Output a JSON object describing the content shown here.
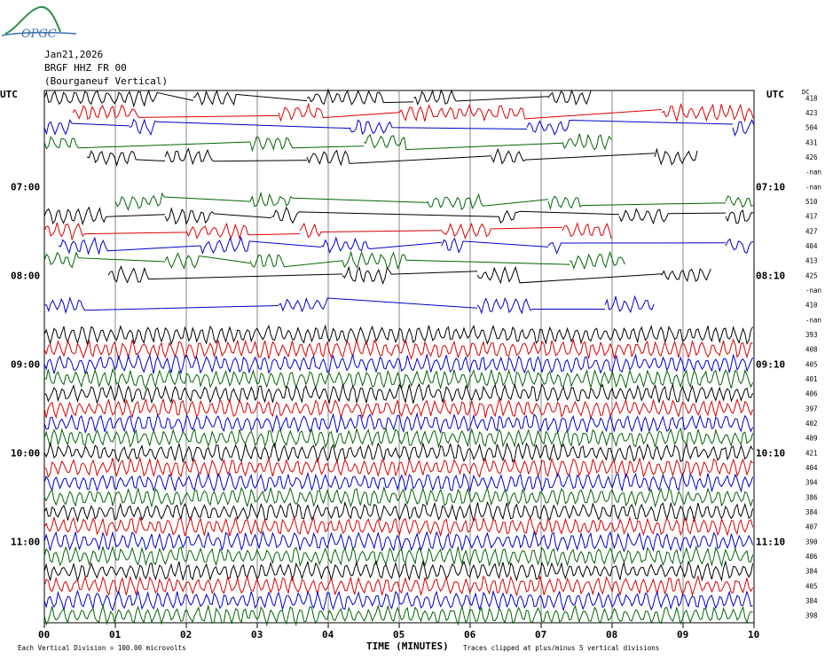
{
  "logo": {
    "text": "OPGC"
  },
  "header": {
    "date": "Jan21,2026",
    "station": "BRGF HHZ FR 00",
    "location": "(Bourganeuf Vertical)"
  },
  "axis": {
    "left_unit": "UTC",
    "right_unit": "UTC",
    "dc_label": "DC",
    "xlabel": "TIME (MINUTES)",
    "xticks": [
      "00",
      "01",
      "02",
      "03",
      "04",
      "05",
      "06",
      "07",
      "08",
      "09",
      "10"
    ]
  },
  "footer": {
    "division": "Each Vertical Division = 100.00 microvolts",
    "clip": "Traces clipped at plus/minus 5 vertical divisions"
  },
  "chart_data": {
    "type": "line",
    "xlim": [
      0,
      10
    ],
    "left_hour_labels": [
      {
        "row": 6,
        "label": "07:00"
      },
      {
        "row": 12,
        "label": "08:00"
      },
      {
        "row": 18,
        "label": "09:00"
      },
      {
        "row": 24,
        "label": "10:00"
      },
      {
        "row": 30,
        "label": "11:00"
      }
    ],
    "right_hour_labels": [
      {
        "row": 6,
        "label": "07:10"
      },
      {
        "row": 12,
        "label": "08:10"
      },
      {
        "row": 18,
        "label": "09:10"
      },
      {
        "row": 24,
        "label": "10:10"
      },
      {
        "row": 30,
        "label": "11:10"
      }
    ],
    "trace_colors": [
      "#000000",
      "#dd0000",
      "#0000cc",
      "#006600"
    ],
    "dc_offsets": [
      "418",
      "423",
      "504",
      "431",
      "426",
      "-nan",
      "-nan",
      "510",
      "417",
      "427",
      "404",
      "413",
      "425",
      "-nan",
      "410",
      "-nan",
      "393",
      "408",
      "405",
      "401",
      "406",
      "397",
      "402",
      "409",
      "421",
      "404",
      "394",
      "386",
      "384",
      "407",
      "390",
      "406",
      "384",
      "405",
      "384",
      "398"
    ],
    "traces": [
      {
        "row": 0,
        "segments": [
          [
            0,
            1.6
          ],
          [
            2.1,
            2.7
          ],
          [
            3.7,
            4.8
          ],
          [
            5.2,
            5.8
          ],
          [
            7.1,
            7.7
          ]
        ],
        "gap_flat": true
      },
      {
        "row": 1,
        "segments": [
          [
            0.4,
            1.35
          ],
          [
            3.3,
            3.95
          ],
          [
            5.0,
            6.8
          ],
          [
            8.7,
            10
          ]
        ]
      },
      {
        "row": 2,
        "segments": [
          [
            0,
            0.4
          ],
          [
            1.2,
            1.6
          ],
          [
            4.3,
            4.9
          ],
          [
            6.8,
            7.4
          ],
          [
            9.7,
            10
          ]
        ]
      },
      {
        "row": 3,
        "segments": [
          [
            0,
            0.5
          ],
          [
            2.9,
            3.5
          ],
          [
            4.5,
            5.1
          ],
          [
            7.3,
            8.0
          ]
        ]
      },
      {
        "row": 4,
        "segments": [
          [
            0.6,
            1.3
          ],
          [
            1.7,
            2.4
          ],
          [
            3.7,
            4.3
          ],
          [
            6.3,
            6.8
          ],
          [
            8.6,
            9.2
          ]
        ]
      },
      {
        "row": 7,
        "segments": [
          [
            1.0,
            1.7
          ],
          [
            2.9,
            3.5
          ],
          [
            5.4,
            6.2
          ],
          [
            7.1,
            7.6
          ],
          [
            9.6,
            10
          ]
        ]
      },
      {
        "row": 8,
        "segments": [
          [
            0,
            0.9
          ],
          [
            1.7,
            2.4
          ],
          [
            3.2,
            3.6
          ],
          [
            6.4,
            6.7
          ],
          [
            8.1,
            8.8
          ],
          [
            9.6,
            10
          ]
        ]
      },
      {
        "row": 9,
        "segments": [
          [
            0,
            0.6
          ],
          [
            2.0,
            2.9
          ],
          [
            3.6,
            3.9
          ],
          [
            5.6,
            6.3
          ],
          [
            7.3,
            8.0
          ]
        ]
      },
      {
        "row": 10,
        "segments": [
          [
            0.2,
            0.9
          ],
          [
            2.2,
            2.9
          ],
          [
            3.9,
            4.6
          ],
          [
            5.6,
            5.9
          ],
          [
            7.1,
            7.3
          ],
          [
            9.6,
            10
          ]
        ]
      },
      {
        "row": 11,
        "segments": [
          [
            0,
            0.5
          ],
          [
            1.7,
            2.2
          ],
          [
            2.9,
            3.4
          ],
          [
            4.2,
            5.1
          ],
          [
            7.4,
            8.2
          ]
        ]
      },
      {
        "row": 12,
        "segments": [
          [
            0.9,
            1.5
          ],
          [
            4.2,
            4.9
          ],
          [
            6.1,
            6.7
          ],
          [
            8.7,
            9.4
          ]
        ]
      },
      {
        "row": 14,
        "segments": [
          [
            0,
            0.6
          ],
          [
            3.3,
            4.0
          ],
          [
            6.1,
            6.9
          ],
          [
            7.9,
            8.6
          ]
        ]
      },
      {
        "row": 16,
        "full": true
      },
      {
        "row": 17,
        "full": true
      },
      {
        "row": 18,
        "full": true
      },
      {
        "row": 19,
        "full": true
      },
      {
        "row": 20,
        "full": true
      },
      {
        "row": 21,
        "full": true
      },
      {
        "row": 22,
        "full": true
      },
      {
        "row": 23,
        "full": true
      },
      {
        "row": 24,
        "full": true
      },
      {
        "row": 25,
        "full": true
      },
      {
        "row": 26,
        "full": true
      },
      {
        "row": 27,
        "full": true
      },
      {
        "row": 28,
        "full": true
      },
      {
        "row": 29,
        "full": true
      },
      {
        "row": 30,
        "full": true
      },
      {
        "row": 31,
        "full": true
      },
      {
        "row": 32,
        "full": true
      },
      {
        "row": 33,
        "full": true
      },
      {
        "row": 34,
        "full": true
      },
      {
        "row": 35,
        "full": true
      }
    ]
  }
}
